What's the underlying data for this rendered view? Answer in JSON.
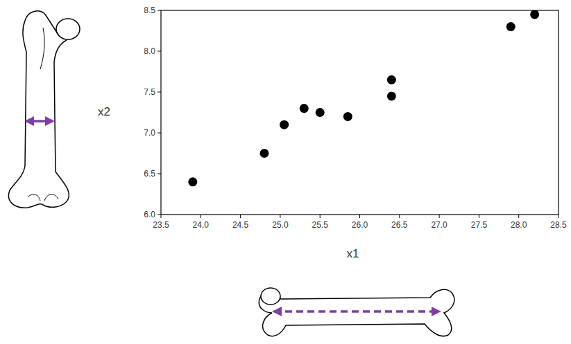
{
  "chart_data": {
    "type": "scatter",
    "x_label": "x1",
    "y_label": "x2",
    "x": [
      23.9,
      24.8,
      25.05,
      25.3,
      25.5,
      25.85,
      26.4,
      26.4,
      27.9,
      28.2
    ],
    "values": [
      6.4,
      6.75,
      7.1,
      7.3,
      7.25,
      7.2,
      7.65,
      7.45,
      8.3,
      8.45
    ],
    "color": "#000000",
    "marker": "circle",
    "xlim": [
      23.5,
      28.5
    ],
    "xticks": [
      23.5,
      {
        "value": 24,
        "label": "24.0"
      },
      24.5,
      {
        "value": 25,
        "label": "25.0"
      },
      25.5,
      {
        "value": 26,
        "label": "26.0"
      },
      26.5,
      {
        "value": 27,
        "label": "27.0"
      },
      27.5,
      {
        "value": 28,
        "label": "28.0"
      },
      28.5
    ],
    "ylim": [
      6,
      8.5
    ],
    "yticks": [
      {
        "value": 6,
        "label": "6.0"
      },
      6.5,
      {
        "value": 7,
        "label": "7.0"
      },
      7.5,
      {
        "value": 8,
        "label": "8.0"
      },
      8.5
    ],
    "grid": false
  }
}
